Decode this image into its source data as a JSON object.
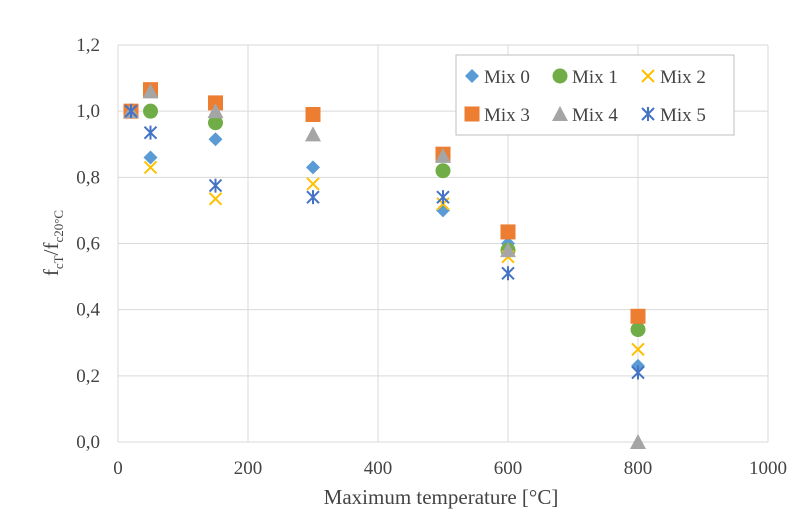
{
  "chart_data": {
    "type": "scatter",
    "title": "",
    "xlabel": "Maximum temperature [°C]",
    "ylabel": {
      "main": "f",
      "sub1": "cT",
      "mid": "/f",
      "sub2": "c20°C"
    },
    "xlim": [
      0,
      1000
    ],
    "ylim": [
      0.0,
      1.2
    ],
    "xticks": [
      "0",
      "200",
      "400",
      "600",
      "800",
      "1000"
    ],
    "yticks": [
      "0,0",
      "0,2",
      "0,4",
      "0,6",
      "0,8",
      "1,0",
      "1,2"
    ],
    "xtick_values": [
      0,
      200,
      400,
      600,
      800,
      1000
    ],
    "ytick_values": [
      0.0,
      0.2,
      0.4,
      0.6,
      0.8,
      1.0,
      1.2
    ],
    "grid": true,
    "legend_position": "top-right",
    "series": [
      {
        "name": "Mix 0",
        "marker": "diamond",
        "color": "#5b9bd5",
        "x": [
          20,
          50,
          150,
          300,
          500,
          600,
          800
        ],
        "y": [
          1.0,
          0.86,
          0.915,
          0.83,
          0.7,
          0.6,
          0.23
        ]
      },
      {
        "name": "Mix 1",
        "marker": "circle",
        "color": "#70ad47",
        "x": [
          20,
          50,
          150,
          300,
          500,
          600,
          800
        ],
        "y": [
          1.0,
          1.0,
          0.965,
          0.99,
          0.82,
          0.58,
          0.34
        ]
      },
      {
        "name": "Mix 2",
        "marker": "x",
        "color": "#ffc000",
        "x": [
          20,
          50,
          150,
          300,
          500,
          600,
          800
        ],
        "y": [
          1.0,
          0.83,
          0.735,
          0.78,
          0.72,
          0.56,
          0.28
        ]
      },
      {
        "name": "Mix 3",
        "marker": "square",
        "color": "#ed7d31",
        "x": [
          20,
          50,
          150,
          300,
          500,
          600,
          800
        ],
        "y": [
          1.0,
          1.065,
          1.025,
          0.99,
          0.87,
          0.635,
          0.38
        ]
      },
      {
        "name": "Mix 4",
        "marker": "triangle",
        "color": "#a5a5a5",
        "x": [
          20,
          50,
          150,
          300,
          500,
          600,
          800
        ],
        "y": [
          1.0,
          1.06,
          1.0,
          0.93,
          0.865,
          0.58,
          0.0
        ]
      },
      {
        "name": "Mix 5",
        "marker": "asterisk",
        "color": "#4472c4",
        "x": [
          20,
          50,
          150,
          300,
          500,
          600,
          800
        ],
        "y": [
          1.0,
          0.935,
          0.775,
          0.74,
          0.74,
          0.51,
          0.21
        ]
      }
    ]
  }
}
